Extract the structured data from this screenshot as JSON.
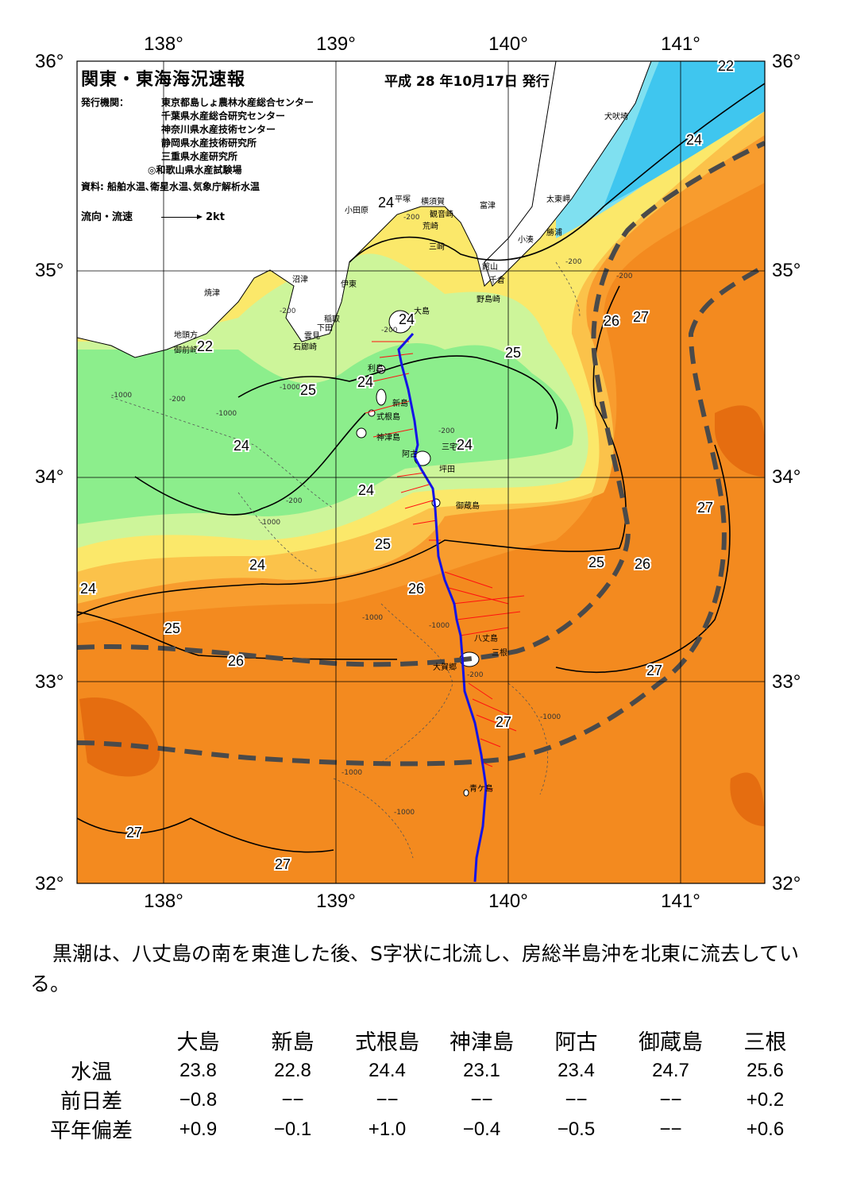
{
  "map": {
    "title": "関東・東海海況速報",
    "pub_date": "平成 28 年10月17日 発行",
    "publisher_label": "発行機関：",
    "agencies": [
      "東京都島しょ農林水産総合センター",
      "千葉県水産総合研究センター",
      "神奈川県水産技術センター",
      "静岡県水産技術研究所",
      "三重県水産研究所",
      "◎和歌山県水産試験場"
    ],
    "source_label": "資料: 船舶水温､衛星水温､気象庁解析水温",
    "legend_label": "流向・流速",
    "legend_scale": "2kt",
    "lon_ticks": [
      "138°",
      "139°",
      "140°",
      "141°"
    ],
    "lat_ticks": [
      "36°",
      "35°",
      "34°",
      "33°",
      "32°"
    ],
    "colors": {
      "sea_cold": "#3fc6ef",
      "sea_cyan": "#7fe0f0",
      "sea_green": "#8cee8c",
      "sea_lightgreen": "#cdf59a",
      "sea_yellow": "#fbe86a",
      "sea_lightorange": "#fbc24a",
      "sea_orange": "#f89c2e",
      "sea_deep": "#f38a1f",
      "sea_darkest": "#e56d10",
      "land": "#ffffff",
      "kuroshio_axis": "#4a4a4a",
      "ship_track": "#1414e6",
      "current_vectors": "#ff1010"
    },
    "place_names": [
      "犬吠埼",
      "太東岬",
      "勝浦",
      "小湊",
      "富津",
      "館山",
      "千倉",
      "野島崎",
      "横須賀",
      "観音崎",
      "荒崎",
      "三崎",
      "平塚",
      "小田原",
      "伊東",
      "稲取",
      "下田",
      "雲見",
      "石廊崎",
      "沼津",
      "焼津",
      "地頭方",
      "御前崎",
      "大島",
      "利島",
      "新島",
      "式根島",
      "神津島",
      "三宅島",
      "坪田",
      "阿古",
      "御蔵島",
      "八丈島",
      "三根",
      "大賀郷",
      "青ケ島"
    ],
    "isotherm_labels": [
      "22",
      "24",
      "24",
      "22",
      "25",
      "24",
      "24",
      "24",
      "24",
      "25",
      "24",
      "26",
      "27",
      "25",
      "25",
      "26",
      "25",
      "26",
      "26",
      "27",
      "27",
      "27",
      "27",
      "27",
      "24",
      "24"
    ],
    "depth_labels": [
      "-200",
      "-200",
      "-200",
      "-200",
      "-200",
      "-200",
      "-200",
      "-1000",
      "-1000",
      "-1000",
      "-1000",
      "-1000",
      "-1000",
      "-1000",
      "-1000",
      "-1000",
      "-200",
      "-200"
    ]
  },
  "summary": "黒潮は、八丈島の南を東進した後、S字状に北流し、房総半島沖を北東に流去している。",
  "table": {
    "columns": [
      "大島",
      "新島",
      "式根島",
      "神津島",
      "阿古",
      "御蔵島",
      "三根"
    ],
    "rows": [
      {
        "label": "水温",
        "values": [
          "23.8",
          "22.8",
          "24.4",
          "23.1",
          "23.4",
          "24.7",
          "25.6"
        ]
      },
      {
        "label": "前日差",
        "values": [
          "−0.8",
          "−−",
          "−−",
          "−−",
          "−−",
          "−−",
          "+0.2"
        ]
      },
      {
        "label": "平年偏差",
        "values": [
          "+0.9",
          "−0.1",
          "+1.0",
          "−0.4",
          "−0.5",
          "−−",
          "+0.6"
        ]
      }
    ]
  }
}
